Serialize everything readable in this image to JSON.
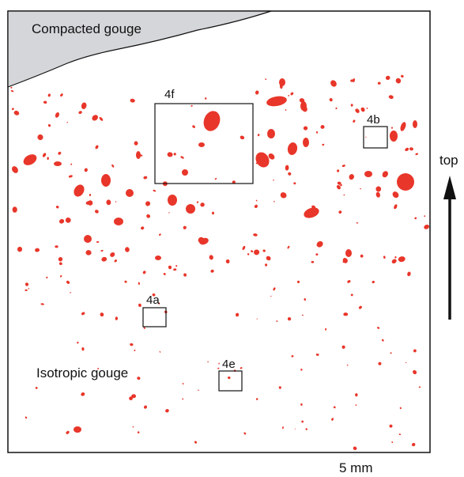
{
  "diagram": {
    "zones": {
      "compacted": "Compacted gouge",
      "isotropic": "Isotropic gouge"
    },
    "boxes": [
      {
        "label": "4f"
      },
      {
        "label": "4b"
      },
      {
        "label": "4a"
      },
      {
        "label": "4e"
      }
    ],
    "orientation_label": "top",
    "scale_label": "5 mm",
    "colors": {
      "clast": "#e8362a",
      "compacted_fill": "#d4d6d9",
      "outline": "#111111"
    }
  }
}
